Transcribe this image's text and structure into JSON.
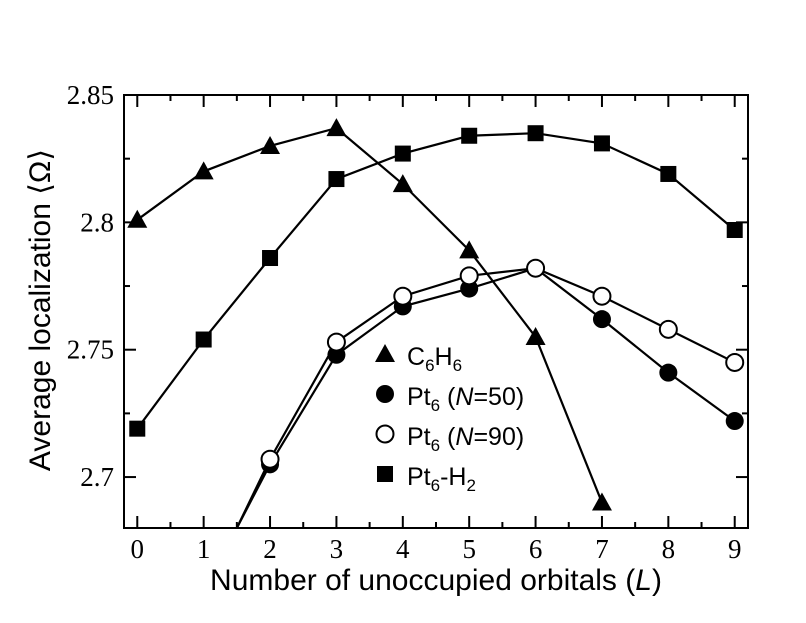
{
  "chart_data": {
    "type": "line",
    "xlabel": "Number of unoccupied orbitals (L)",
    "xlabel_parts": [
      "Number of unoccupied orbitals (",
      "L",
      ")"
    ],
    "ylabel": "Average localization ⟨Ω⟩",
    "xlim": [
      -0.2,
      9.2
    ],
    "ylim": [
      2.68,
      2.85
    ],
    "xticks": [
      0,
      1,
      2,
      3,
      4,
      5,
      6,
      7,
      8,
      9
    ],
    "yticks": [
      2.7,
      2.75,
      2.8,
      2.85
    ],
    "ytick_labels": [
      "2.7",
      "2.75",
      "2.8",
      "2.85"
    ],
    "grid": false,
    "legend_position": "center-left, inside plot",
    "series": [
      {
        "name": "C6H6",
        "marker": "triangle",
        "x": [
          0,
          1,
          2,
          3,
          4,
          5,
          6,
          7
        ],
        "y": [
          2.801,
          2.82,
          2.83,
          2.837,
          2.815,
          2.789,
          2.755,
          2.69
        ],
        "legend": [
          {
            "t": "C",
            "s": ""
          },
          {
            "t": "6",
            "s": "sub"
          },
          {
            "t": "H",
            "s": ""
          },
          {
            "t": "6",
            "s": "sub"
          }
        ]
      },
      {
        "name": "Pt6 (N=50)",
        "marker": "filled-circle",
        "x": [
          1.5,
          2,
          3,
          4,
          5,
          6,
          7,
          8,
          9
        ],
        "y": [
          2.68,
          2.705,
          2.748,
          2.767,
          2.774,
          2.782,
          2.762,
          2.741,
          2.722
        ],
        "legend": [
          {
            "t": "Pt",
            "s": ""
          },
          {
            "t": "6",
            "s": "sub"
          },
          {
            "t": " (",
            "s": ""
          },
          {
            "t": "N",
            "s": "i"
          },
          {
            "t": "=50)",
            "s": ""
          }
        ]
      },
      {
        "name": "Pt6 (N=90)",
        "marker": "open-circle",
        "x": [
          1.5,
          2,
          3,
          4,
          5,
          6,
          7,
          8,
          9
        ],
        "y": [
          2.68,
          2.707,
          2.753,
          2.771,
          2.779,
          2.782,
          2.771,
          2.758,
          2.745
        ],
        "legend": [
          {
            "t": "Pt",
            "s": ""
          },
          {
            "t": "6",
            "s": "sub"
          },
          {
            "t": " (",
            "s": ""
          },
          {
            "t": "N",
            "s": "i"
          },
          {
            "t": "=90)",
            "s": ""
          }
        ]
      },
      {
        "name": "Pt6-H2",
        "marker": "square",
        "x": [
          0,
          1,
          2,
          3,
          4,
          5,
          6,
          7,
          8,
          9
        ],
        "y": [
          2.719,
          2.754,
          2.786,
          2.817,
          2.827,
          2.834,
          2.835,
          2.831,
          2.819,
          2.797
        ],
        "legend": [
          {
            "t": "Pt",
            "s": ""
          },
          {
            "t": "6",
            "s": "sub"
          },
          {
            "t": "-H",
            "s": ""
          },
          {
            "t": "2",
            "s": "sub"
          }
        ]
      }
    ]
  }
}
